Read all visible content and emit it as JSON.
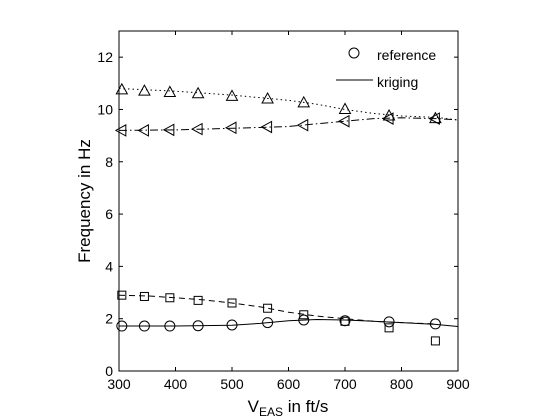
{
  "chart_data": {
    "type": "line",
    "xlabel_main": "V",
    "xlabel_sub": "EAS",
    "xlabel_rest": " in ft/s",
    "ylabel": "Frequency in Hz",
    "xlim": [
      300,
      900
    ],
    "ylim": [
      0,
      13
    ],
    "xticks": [
      300,
      400,
      500,
      600,
      700,
      800,
      900
    ],
    "yticks": [
      0,
      2,
      4,
      6,
      8,
      10,
      12
    ],
    "grid": false,
    "legend": {
      "placement": "top-right",
      "entries": [
        {
          "label": "reference",
          "symbol": "circle"
        },
        {
          "label": "kriging",
          "symbol": "line"
        }
      ]
    },
    "series": [
      {
        "marker": "triangle-up",
        "line_style": "dotted",
        "kriging": {
          "x": [
            300,
            400,
            500,
            600,
            650,
            700,
            750,
            800,
            860,
            900
          ],
          "y": [
            10.8,
            10.7,
            10.55,
            10.35,
            10.2,
            10.0,
            9.85,
            9.75,
            9.7,
            9.6
          ]
        },
        "reference": {
          "x": [
            305,
            345,
            390,
            440,
            500,
            563,
            627,
            700,
            778,
            860
          ],
          "y": [
            10.75,
            10.7,
            10.65,
            10.6,
            10.5,
            10.4,
            10.25,
            10.0,
            9.75,
            9.65
          ]
        }
      },
      {
        "marker": "triangle-left",
        "line_style": "dashdot",
        "kriging": {
          "x": [
            300,
            400,
            500,
            600,
            650,
            700,
            750,
            800,
            860,
            900
          ],
          "y": [
            9.2,
            9.22,
            9.28,
            9.35,
            9.45,
            9.55,
            9.65,
            9.68,
            9.65,
            9.6
          ]
        },
        "reference": {
          "x": [
            305,
            345,
            390,
            440,
            500,
            563,
            627,
            700,
            778,
            860
          ],
          "y": [
            9.2,
            9.2,
            9.22,
            9.25,
            9.3,
            9.33,
            9.4,
            9.55,
            9.65,
            9.65
          ]
        }
      },
      {
        "marker": "square",
        "line_style": "dashed",
        "kriging": {
          "x": [
            300,
            350,
            400,
            450,
            500,
            550,
            600,
            650,
            700,
            750,
            800,
            860
          ],
          "y": [
            2.9,
            2.87,
            2.8,
            2.72,
            2.6,
            2.45,
            2.25,
            2.1,
            2.0,
            1.9,
            1.85,
            1.8
          ]
        },
        "reference": {
          "x": [
            305,
            345,
            390,
            440,
            500,
            563,
            627,
            700,
            778,
            860
          ],
          "y": [
            2.9,
            2.85,
            2.8,
            2.7,
            2.6,
            2.4,
            2.15,
            1.9,
            1.65,
            1.15
          ]
        }
      },
      {
        "marker": "circle",
        "line_style": "solid",
        "kriging": {
          "x": [
            300,
            400,
            500,
            550,
            600,
            650,
            700,
            750,
            800,
            860,
            900
          ],
          "y": [
            1.72,
            1.72,
            1.75,
            1.82,
            1.92,
            1.97,
            1.95,
            1.9,
            1.85,
            1.78,
            1.7
          ]
        },
        "reference": {
          "x": [
            305,
            345,
            390,
            440,
            500,
            563,
            627,
            700,
            778,
            860
          ],
          "y": [
            1.72,
            1.72,
            1.72,
            1.73,
            1.76,
            1.85,
            1.95,
            1.92,
            1.88,
            1.8
          ]
        }
      }
    ]
  }
}
